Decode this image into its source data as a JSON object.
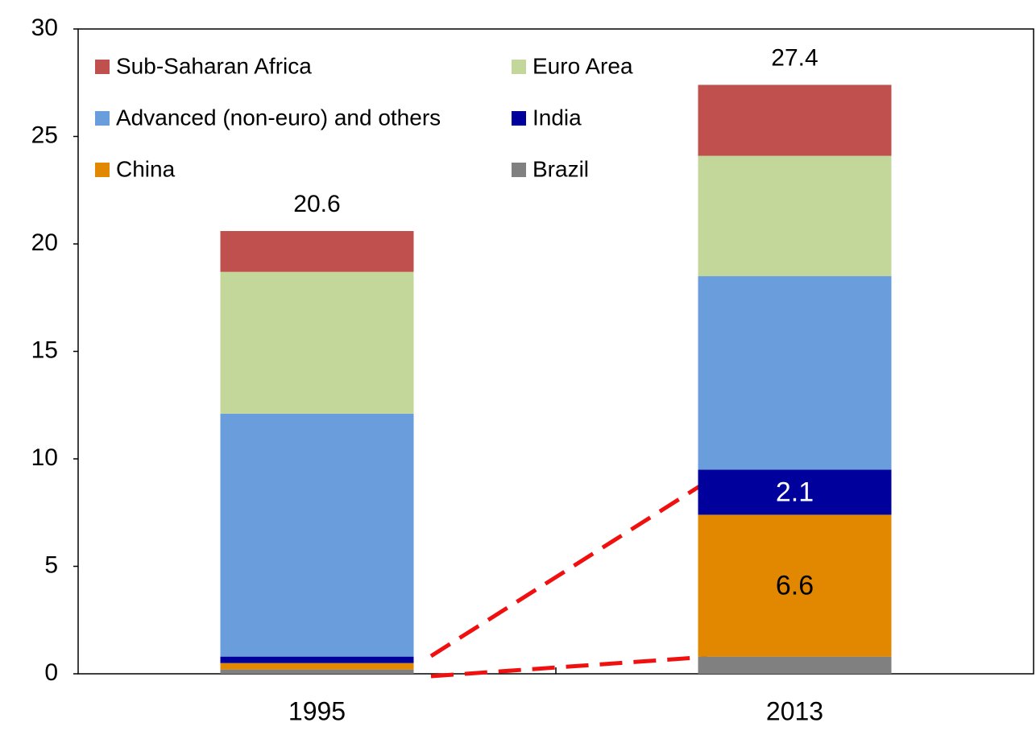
{
  "chart_data": {
    "type": "stacked_bar",
    "categories": [
      "1995",
      "2013"
    ],
    "series": [
      {
        "name": "Brazil",
        "color": "#808080",
        "values": [
          0.2,
          0.8
        ]
      },
      {
        "name": "China",
        "color": "#e28800",
        "values": [
          0.3,
          6.6
        ],
        "value_labels": [
          null,
          "6.6"
        ]
      },
      {
        "name": "India",
        "color": "#00009c",
        "values": [
          0.3,
          2.1
        ],
        "value_labels": [
          null,
          "2.1"
        ]
      },
      {
        "name": "Advanced (non-euro) and others",
        "color": "#6a9ddb",
        "values": [
          11.3,
          9.0
        ]
      },
      {
        "name": "Euro Area",
        "color": "#c4d79b",
        "values": [
          6.6,
          5.6
        ]
      },
      {
        "name": "Sub-Saharan Africa",
        "color": "#c0504d",
        "values": [
          1.9,
          3.3
        ]
      }
    ],
    "total_labels": [
      "20.6",
      "27.4"
    ],
    "ylim": [
      0,
      30
    ],
    "yticks": [
      0,
      5,
      10,
      15,
      20,
      25,
      30
    ]
  }
}
